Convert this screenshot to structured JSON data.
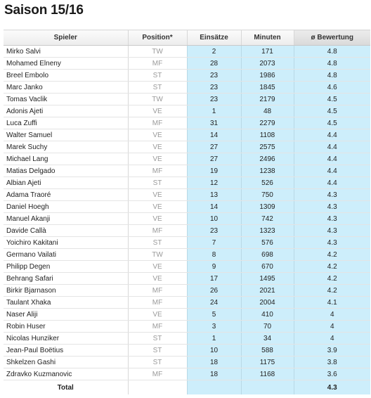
{
  "title": "Saison 15/16",
  "columns": {
    "spieler": "Spieler",
    "position": "Position*",
    "einsaetze": "Einsätze",
    "minuten": "Minuten",
    "bewertung": "ø Bewertung"
  },
  "rows": [
    {
      "name": "Mirko Salvi",
      "pos": "TW",
      "eins": "2",
      "min": "171",
      "bew": "4.8"
    },
    {
      "name": "Mohamed Elneny",
      "pos": "MF",
      "eins": "28",
      "min": "2073",
      "bew": "4.8"
    },
    {
      "name": "Breel Embolo",
      "pos": "ST",
      "eins": "23",
      "min": "1986",
      "bew": "4.8"
    },
    {
      "name": "Marc Janko",
      "pos": "ST",
      "eins": "23",
      "min": "1845",
      "bew": "4.6"
    },
    {
      "name": "Tomas Vaclik",
      "pos": "TW",
      "eins": "23",
      "min": "2179",
      "bew": "4.5"
    },
    {
      "name": "Adonis Ajeti",
      "pos": "VE",
      "eins": "1",
      "min": "48",
      "bew": "4.5"
    },
    {
      "name": "Luca Zuffi",
      "pos": "MF",
      "eins": "31",
      "min": "2279",
      "bew": "4.5"
    },
    {
      "name": "Walter Samuel",
      "pos": "VE",
      "eins": "14",
      "min": "1108",
      "bew": "4.4"
    },
    {
      "name": "Marek Suchy",
      "pos": "VE",
      "eins": "27",
      "min": "2575",
      "bew": "4.4"
    },
    {
      "name": "Michael Lang",
      "pos": "VE",
      "eins": "27",
      "min": "2496",
      "bew": "4.4"
    },
    {
      "name": "Matias Delgado",
      "pos": "MF",
      "eins": "19",
      "min": "1238",
      "bew": "4.4"
    },
    {
      "name": "Albian Ajeti",
      "pos": "ST",
      "eins": "12",
      "min": "526",
      "bew": "4.4"
    },
    {
      "name": "Adama Traoré",
      "pos": "VE",
      "eins": "13",
      "min": "750",
      "bew": "4.3"
    },
    {
      "name": "Daniel Hoegh",
      "pos": "VE",
      "eins": "14",
      "min": "1309",
      "bew": "4.3"
    },
    {
      "name": "Manuel Akanji",
      "pos": "VE",
      "eins": "10",
      "min": "742",
      "bew": "4.3"
    },
    {
      "name": "Davide Callà",
      "pos": "MF",
      "eins": "23",
      "min": "1323",
      "bew": "4.3"
    },
    {
      "name": "Yoichiro Kakitani",
      "pos": "ST",
      "eins": "7",
      "min": "576",
      "bew": "4.3"
    },
    {
      "name": "Germano Vailati",
      "pos": "TW",
      "eins": "8",
      "min": "698",
      "bew": "4.2"
    },
    {
      "name": "Philipp Degen",
      "pos": "VE",
      "eins": "9",
      "min": "670",
      "bew": "4.2"
    },
    {
      "name": "Behrang Safari",
      "pos": "VE",
      "eins": "17",
      "min": "1495",
      "bew": "4.2"
    },
    {
      "name": "Birkir Bjarnason",
      "pos": "MF",
      "eins": "26",
      "min": "2021",
      "bew": "4.2"
    },
    {
      "name": "Taulant Xhaka",
      "pos": "MF",
      "eins": "24",
      "min": "2004",
      "bew": "4.1"
    },
    {
      "name": "Naser Aliji",
      "pos": "VE",
      "eins": "5",
      "min": "410",
      "bew": "4"
    },
    {
      "name": "Robin Huser",
      "pos": "MF",
      "eins": "3",
      "min": "70",
      "bew": "4"
    },
    {
      "name": "Nicolas Hunziker",
      "pos": "ST",
      "eins": "1",
      "min": "34",
      "bew": "4"
    },
    {
      "name": "Jean-Paul Boëtius",
      "pos": "ST",
      "eins": "10",
      "min": "588",
      "bew": "3.9"
    },
    {
      "name": "Shkelzen Gashi",
      "pos": "ST",
      "eins": "18",
      "min": "1175",
      "bew": "3.8"
    },
    {
      "name": "Zdravko Kuzmanovic",
      "pos": "MF",
      "eins": "18",
      "min": "1168",
      "bew": "3.6"
    }
  ],
  "total": {
    "label": "Total",
    "bew": "4.3"
  }
}
